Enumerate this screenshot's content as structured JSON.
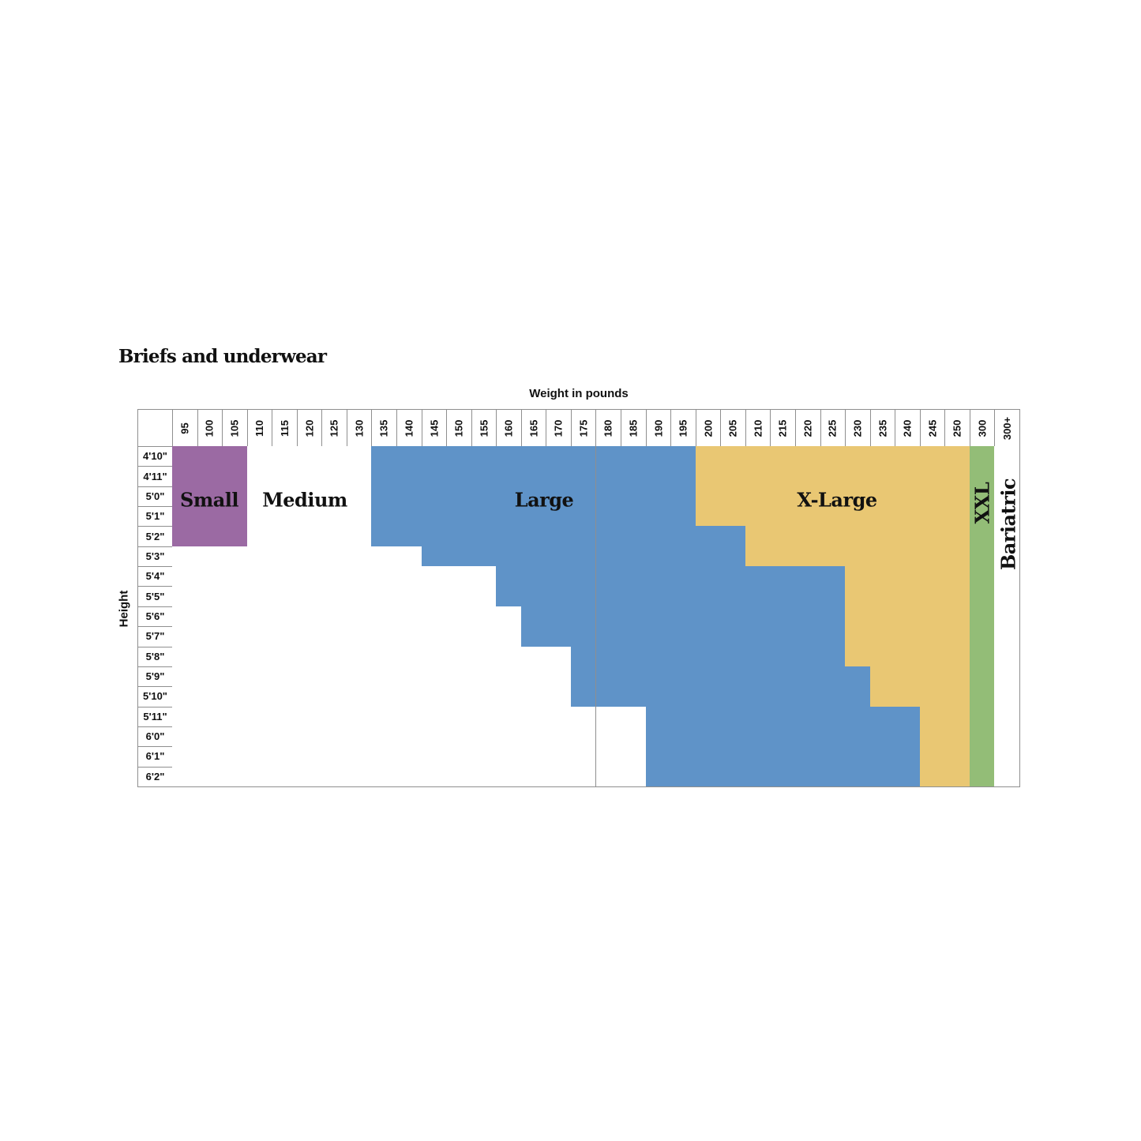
{
  "chart_data": {
    "type": "table",
    "title": "Briefs and underwear",
    "xlabel": "Weight in pounds",
    "ylabel": "Height",
    "columns": [
      "95",
      "100",
      "105",
      "110",
      "115",
      "120",
      "125",
      "130",
      "135",
      "140",
      "145",
      "150",
      "155",
      "160",
      "165",
      "170",
      "175",
      "180",
      "185",
      "190",
      "195",
      "200",
      "205",
      "210",
      "215",
      "220",
      "225",
      "230",
      "235",
      "240",
      "245",
      "250",
      "300",
      "300+"
    ],
    "sizes": [
      {
        "name": "Small",
        "color": "#9b6aa3"
      },
      {
        "name": "Medium",
        "color": "#ffffff"
      },
      {
        "name": "Large",
        "color": "#5f93c8"
      },
      {
        "name": "X-Large",
        "color": "#e9c773"
      },
      {
        "name": "XXL",
        "color": "#93bd77"
      },
      {
        "name": "Bariatric",
        "color": "#ffffff"
      }
    ],
    "rows": [
      {
        "height": "4'10\"",
        "small_to": "105",
        "large_from": "135",
        "xlarge_from": "200",
        "xxl_from": "300",
        "bariatric_from": "300+"
      },
      {
        "height": "4'11\"",
        "small_to": "105",
        "large_from": "135",
        "xlarge_from": "200",
        "xxl_from": "300",
        "bariatric_from": "300+"
      },
      {
        "height": "5'0\"",
        "small_to": "105",
        "large_from": "135",
        "xlarge_from": "200",
        "xxl_from": "300",
        "bariatric_from": "300+"
      },
      {
        "height": "5'1\"",
        "small_to": "105",
        "large_from": "135",
        "xlarge_from": "200",
        "xxl_from": "300",
        "bariatric_from": "300+"
      },
      {
        "height": "5'2\"",
        "small_to": "105",
        "large_from": "135",
        "xlarge_from": "210",
        "xxl_from": "300",
        "bariatric_from": "300+"
      },
      {
        "height": "5'3\"",
        "small_to": null,
        "large_from": "145",
        "xlarge_from": "210",
        "xxl_from": "300",
        "bariatric_from": "300+"
      },
      {
        "height": "5'4\"",
        "small_to": null,
        "large_from": "160",
        "xlarge_from": "230",
        "xxl_from": "300",
        "bariatric_from": "300+"
      },
      {
        "height": "5'5\"",
        "small_to": null,
        "large_from": "160",
        "xlarge_from": "230",
        "xxl_from": "300",
        "bariatric_from": "300+"
      },
      {
        "height": "5'6\"",
        "small_to": null,
        "large_from": "165",
        "xlarge_from": "230",
        "xxl_from": "300",
        "bariatric_from": "300+"
      },
      {
        "height": "5'7\"",
        "small_to": null,
        "large_from": "165",
        "xlarge_from": "230",
        "xxl_from": "300",
        "bariatric_from": "300+"
      },
      {
        "height": "5'8\"",
        "small_to": null,
        "large_from": "175",
        "xlarge_from": "230",
        "xxl_from": "300",
        "bariatric_from": "300+"
      },
      {
        "height": "5'9\"",
        "small_to": null,
        "large_from": "175",
        "xlarge_from": "235",
        "xxl_from": "300",
        "bariatric_from": "300+"
      },
      {
        "height": "5'10\"",
        "small_to": null,
        "large_from": "175",
        "xlarge_from": "235",
        "xxl_from": "300",
        "bariatric_from": "300+"
      },
      {
        "height": "5'11\"",
        "small_to": null,
        "large_from": "190",
        "xlarge_from": "245",
        "xxl_from": "300",
        "bariatric_from": "300+"
      },
      {
        "height": "6'0\"",
        "small_to": null,
        "large_from": "190",
        "xlarge_from": "245",
        "xxl_from": "300",
        "bariatric_from": "300+"
      },
      {
        "height": "6'1\"",
        "small_to": null,
        "large_from": "190",
        "xlarge_from": "245",
        "xxl_from": "300",
        "bariatric_from": "300+"
      },
      {
        "height": "6'2\"",
        "small_to": null,
        "large_from": "190",
        "xlarge_from": "245",
        "xxl_from": "300",
        "bariatric_from": "300+"
      }
    ],
    "grid_color": "#8f8f8f"
  }
}
